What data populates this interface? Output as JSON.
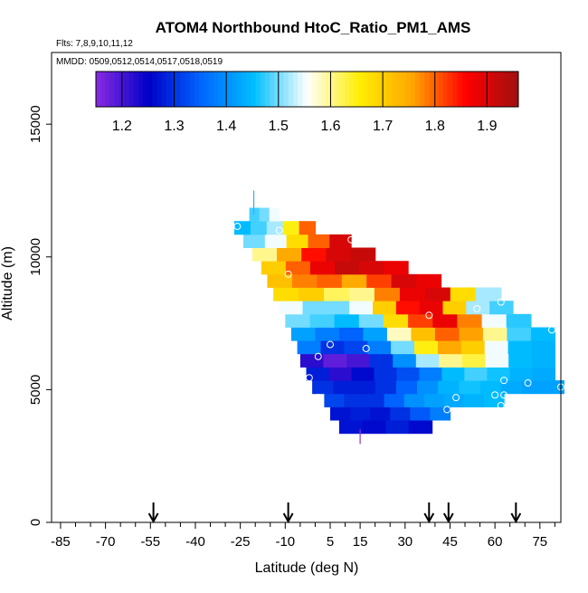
{
  "chart_data": {
    "type": "heatmap",
    "title": "ATOM4 Northbound HtoC_Ratio_PM1_AMS",
    "flights_label": "Flts: 7,8,9,10,11,12",
    "mmdd_label": "MMDD: 0509,0512,0514,0517,0518,0519",
    "xlabel": "Latitude (deg N)",
    "ylabel": "Altitude (m)",
    "xlim": [
      -88,
      82
    ],
    "ylim": [
      0,
      17700
    ],
    "x_ticks": [
      -85,
      -70,
      -55,
      -40,
      -25,
      -10,
      5,
      15,
      30,
      45,
      60,
      75
    ],
    "x_tick_labels": [
      "-85",
      "-70",
      "-55",
      "-40",
      "-25",
      "-10",
      "5",
      "15",
      "30",
      "45",
      "60",
      "75"
    ],
    "y_ticks": [
      0,
      5000,
      10000,
      15000
    ],
    "y_tick_labels": [
      "0",
      "5000",
      "10000",
      "15000"
    ],
    "colorbar": {
      "min": 1.15,
      "max": 1.96,
      "ticks": [
        1.2,
        1.3,
        1.4,
        1.5,
        1.6,
        1.7,
        1.8,
        1.9
      ],
      "tick_labels": [
        "1.2",
        "1.3",
        "1.4",
        "1.5",
        "1.6",
        "1.7",
        "1.8",
        "1.9"
      ],
      "colors": [
        "#8a2be2",
        "#0000c8",
        "#0066ff",
        "#00bfff",
        "#ffffff",
        "#ffee00",
        "#ffa500",
        "#ff0000",
        "#a01010"
      ]
    },
    "profile_arrows_latitude": [
      -54,
      -9,
      38,
      44.5,
      67
    ],
    "rows": [
      {
        "alt": 3600,
        "x0": 8,
        "x1": 39,
        "vals": [
          1.27,
          1.26,
          1.28,
          1.26
        ]
      },
      {
        "alt": 4100,
        "x0": 5,
        "x1": 45,
        "vals": [
          1.27,
          1.28,
          1.27,
          1.3,
          1.34,
          1.38
        ]
      },
      {
        "alt": 4600,
        "x0": 3,
        "x1": 63,
        "vals": [
          1.32,
          1.3,
          1.3,
          1.35,
          1.4,
          1.42,
          1.43,
          1.44,
          1.45
        ]
      },
      {
        "alt": 5100,
        "x0": -1,
        "x1": 83,
        "vals": [
          1.3,
          1.28,
          1.28,
          1.3,
          1.35,
          1.4,
          1.44,
          1.46,
          1.45,
          1.43,
          1.42,
          1.42
        ]
      },
      {
        "alt": 5600,
        "x0": -3,
        "x1": 80,
        "vals": [
          1.28,
          1.22,
          1.26,
          1.3,
          1.33,
          1.38,
          1.45,
          1.48,
          1.46,
          1.44,
          1.43
        ]
      },
      {
        "alt": 6100,
        "x0": -5,
        "x1": 80,
        "vals": [
          1.22,
          1.18,
          1.2,
          1.3,
          1.4,
          1.52,
          1.6,
          1.63,
          1.55,
          1.45,
          1.44
        ]
      },
      {
        "alt": 6600,
        "x0": -6,
        "x1": 80,
        "vals": [
          1.38,
          1.3,
          1.32,
          1.38,
          1.5,
          1.65,
          1.75,
          1.7,
          1.55,
          1.45,
          1.44
        ]
      },
      {
        "alt": 7100,
        "x0": -8,
        "x1": 80,
        "vals": [
          1.42,
          1.38,
          1.35,
          1.42,
          1.58,
          1.72,
          1.8,
          1.76,
          1.6,
          1.48,
          1.45
        ]
      },
      {
        "alt": 7600,
        "x0": -10,
        "x1": 72,
        "vals": [
          1.5,
          1.48,
          1.45,
          1.5,
          1.68,
          1.82,
          1.88,
          1.78,
          1.55,
          1.47
        ]
      },
      {
        "alt": 8100,
        "x0": -12,
        "x1": 66,
        "vals": [
          1.55,
          1.5,
          1.5,
          1.55,
          1.7,
          1.85,
          1.88,
          1.7,
          1.52,
          1.48
        ]
      },
      {
        "alt": 8600,
        "x0": -14,
        "x1": 62,
        "vals": [
          1.68,
          1.7,
          1.62,
          1.6,
          1.78,
          1.88,
          1.9,
          1.68,
          1.52
        ]
      },
      {
        "alt": 9100,
        "x0": -16,
        "x1": 42,
        "vals": [
          1.72,
          1.78,
          1.8,
          1.75,
          1.82,
          1.9,
          1.88
        ]
      },
      {
        "alt": 9600,
        "x0": -18,
        "x1": 31,
        "vals": [
          1.7,
          1.8,
          1.88,
          1.92,
          1.9,
          1.88
        ]
      },
      {
        "alt": 10100,
        "x0": -21,
        "x1": 20,
        "vals": [
          1.6,
          1.75,
          1.85,
          1.9,
          1.92
        ]
      },
      {
        "alt": 10600,
        "x0": -24,
        "x1": 12,
        "vals": [
          1.5,
          1.55,
          1.68,
          1.8,
          1.9
        ]
      },
      {
        "alt": 11100,
        "x0": -27,
        "x1": 0,
        "vals": [
          1.45,
          1.48,
          1.52,
          1.65,
          1.8
        ]
      },
      {
        "alt": 11600,
        "x0": -22,
        "x1": -12,
        "vals": [
          1.48,
          1.5,
          1.55
        ]
      }
    ],
    "points": [
      {
        "x": -26,
        "y": 11150
      },
      {
        "x": -12,
        "y": 11000
      },
      {
        "x": 12,
        "y": 10650
      },
      {
        "x": -9,
        "y": 9350
      },
      {
        "x": 38,
        "y": 7800
      },
      {
        "x": 54,
        "y": 8050
      },
      {
        "x": 62,
        "y": 8300
      },
      {
        "x": 79,
        "y": 7250
      },
      {
        "x": 5,
        "y": 6700
      },
      {
        "x": 17,
        "y": 6550
      },
      {
        "x": 1,
        "y": 6250
      },
      {
        "x": -2,
        "y": 5450
      },
      {
        "x": 63,
        "y": 5350
      },
      {
        "x": 71,
        "y": 5250
      },
      {
        "x": 1,
        "y": 4700
      },
      {
        "x": 47,
        "y": 4700
      },
      {
        "x": 60,
        "y": 4800
      },
      {
        "x": 63,
        "y": 4800
      },
      {
        "x": 62,
        "y": 4400
      },
      {
        "x": 44,
        "y": 4250
      },
      {
        "x": 82,
        "y": 5100
      }
    ],
    "vertical_spikes": [
      {
        "x": -20.5,
        "y0": 11600,
        "y1": 12500,
        "color": "#33aaff"
      },
      {
        "x": 15,
        "y0": 2950,
        "y1": 3500,
        "color": "#9933cc"
      }
    ]
  }
}
